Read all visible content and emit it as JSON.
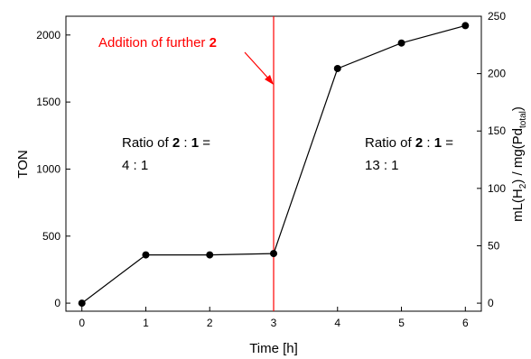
{
  "chart_data": {
    "type": "line",
    "xlabel": "Time [h]",
    "ylabel_left": "TON",
    "ylabel_right": {
      "prefix": "mL(H",
      "sub1": "2",
      "mid": ") / mg(Pd",
      "sub2": "total",
      "suffix": ")"
    },
    "xlim": [
      -0.25,
      6.25
    ],
    "ylim_left": [
      -60,
      2140
    ],
    "ylim_right": [
      -7,
      250
    ],
    "x_ticks": [
      0,
      1,
      2,
      3,
      4,
      5,
      6
    ],
    "y_ticks_left": [
      0,
      500,
      1000,
      1500,
      2000
    ],
    "y_ticks_right": [
      0,
      50,
      100,
      150,
      200,
      250
    ],
    "grid": false,
    "series": [
      {
        "x": [
          0,
          1,
          2,
          3,
          4,
          5,
          6
        ],
        "y": [
          0,
          360,
          360,
          370,
          1750,
          1940,
          2070
        ],
        "color": "#000000"
      }
    ],
    "marker_line": {
      "x": 3,
      "color": "#ff0000"
    },
    "annotations": {
      "addition": {
        "text": "Addition of further ",
        "bold": "2",
        "color": "#ff0000"
      },
      "ratio_left": {
        "l1_pre": "Ratio of ",
        "l1_b1": "2",
        "l1_mid": " : ",
        "l1_b2": "1",
        "l1_post": " =",
        "l2": "4 : 1"
      },
      "ratio_right": {
        "l1_pre": "Ratio of ",
        "l1_b1": "2",
        "l1_mid": " : ",
        "l1_b2": "1",
        "l1_post": " =",
        "l2": "13 : 1"
      }
    }
  }
}
